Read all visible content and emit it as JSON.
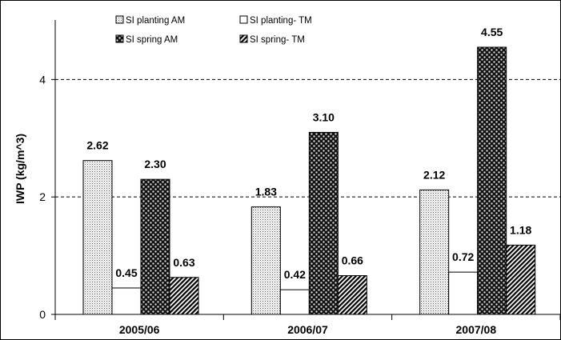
{
  "chart_data": {
    "type": "bar",
    "title": "",
    "xlabel": "",
    "ylabel": "IWP (kg/m^3)",
    "ylim": [
      0,
      5
    ],
    "yticks": [
      0,
      2,
      4
    ],
    "ytick_labels": [
      "0",
      "2",
      "4"
    ],
    "grid": "horizontal dashed at 2 and 4",
    "legend_position": "top",
    "categories": [
      "2005/06",
      "2006/07",
      "2007/08"
    ],
    "series": [
      {
        "name": "SI planting AM",
        "values": [
          2.62,
          1.83,
          2.12
        ],
        "labels": [
          "2.62",
          "1.83",
          "2.12"
        ],
        "pattern": "fine-dots"
      },
      {
        "name": "SI planting- TM",
        "values": [
          0.45,
          0.42,
          0.72
        ],
        "labels": [
          "0.45",
          "0.42",
          "0.72"
        ],
        "pattern": "white"
      },
      {
        "name": "SI spring AM",
        "values": [
          2.3,
          3.1,
          4.55
        ],
        "labels": [
          "2.30",
          "3.10",
          "4.55"
        ],
        "pattern": "dark-checker"
      },
      {
        "name": "SI spring- TM",
        "values": [
          0.63,
          0.66,
          1.18
        ],
        "labels": [
          "0.63",
          "0.66",
          "1.18"
        ],
        "pattern": "diagonal-hatch"
      }
    ]
  }
}
